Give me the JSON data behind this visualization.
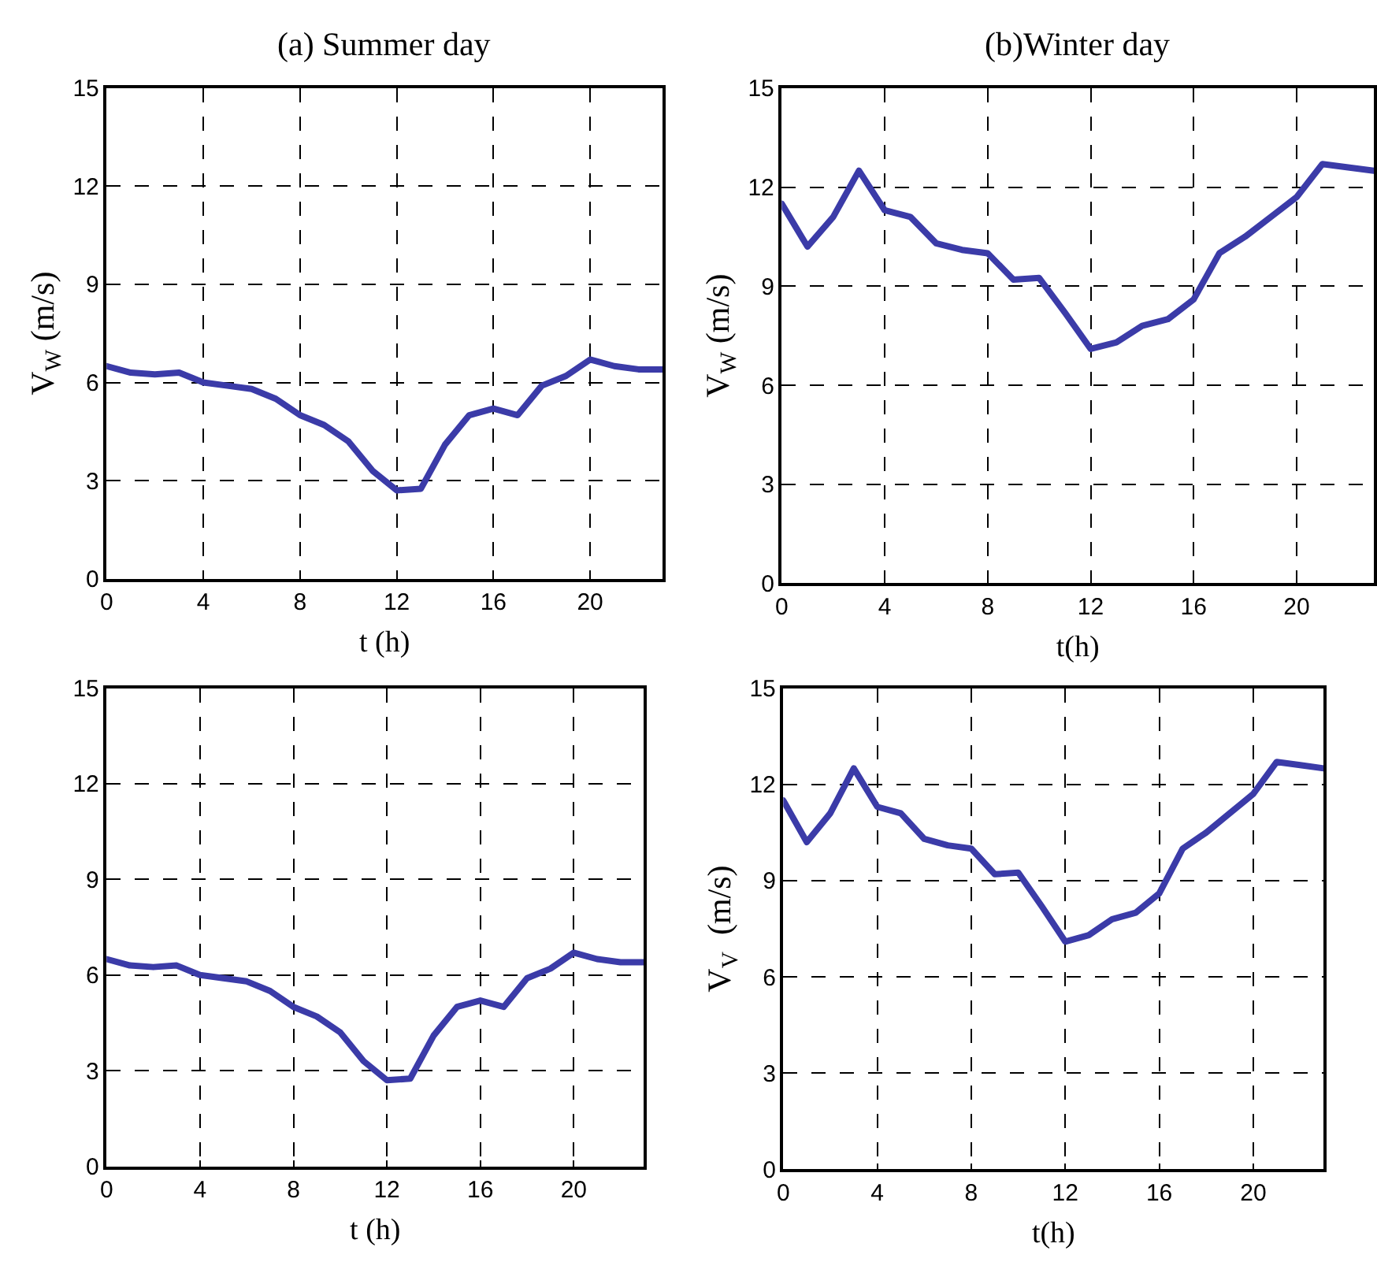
{
  "chart_data": [
    {
      "type": "line",
      "title": "(a) Summer day",
      "xlabel": "t (h)",
      "ylabel": "V$_{W}$ (m/s)",
      "x": [
        0,
        1,
        2,
        3,
        4,
        5,
        6,
        7,
        8,
        9,
        10,
        11,
        12,
        13,
        14,
        15,
        16,
        17,
        18,
        19,
        20,
        21,
        22,
        23
      ],
      "series": [
        {
          "color": "#3b3ba8",
          "values": [
            6.5,
            6.3,
            6.25,
            6.3,
            6.0,
            5.9,
            5.8,
            5.5,
            5.0,
            4.7,
            4.2,
            3.3,
            2.7,
            2.75,
            4.1,
            5.0,
            5.2,
            5.0,
            5.9,
            6.2,
            6.7,
            6.5,
            6.4,
            6.4
          ]
        }
      ],
      "xlim": [
        0,
        23
      ],
      "xticks": [
        0,
        4,
        8,
        12,
        16,
        20
      ],
      "ylim": [
        0,
        15
      ],
      "yticks": [
        0,
        3,
        6,
        9,
        12,
        15
      ],
      "grid": true,
      "line_style": "solid"
    },
    {
      "type": "line",
      "title": "(b)Winter day",
      "xlabel": "t(h)",
      "ylabel": "V$_{W}$ (m/s)",
      "x": [
        0,
        1,
        2,
        3,
        4,
        5,
        6,
        7,
        8,
        9,
        10,
        11,
        12,
        13,
        14,
        15,
        16,
        17,
        18,
        19,
        20,
        21,
        22,
        23
      ],
      "series": [
        {
          "color": "#3b3ba8",
          "values": [
            11.5,
            10.2,
            11.1,
            12.5,
            11.3,
            11.1,
            10.3,
            10.1,
            10.0,
            9.2,
            9.25,
            8.2,
            7.1,
            7.3,
            7.8,
            8.0,
            8.6,
            10.0,
            10.5,
            11.1,
            11.7,
            12.7,
            12.6,
            12.5
          ]
        }
      ],
      "xlim": [
        0,
        23
      ],
      "xticks": [
        0,
        4,
        8,
        12,
        16,
        20
      ],
      "ylim": [
        0,
        15
      ],
      "yticks": [
        0,
        3,
        6,
        9,
        12,
        15
      ],
      "grid": true,
      "line_style": "solid"
    },
    {
      "type": "line",
      "xlabel": "t (h)",
      "x": [
        0,
        1,
        2,
        3,
        4,
        5,
        6,
        7,
        8,
        9,
        10,
        11,
        12,
        13,
        14,
        15,
        16,
        17,
        18,
        19,
        20,
        21,
        22,
        23
      ],
      "series": [
        {
          "color": "#3b3ba8",
          "values": [
            6.5,
            6.3,
            6.25,
            6.3,
            6.0,
            5.9,
            5.8,
            5.5,
            5.0,
            4.7,
            4.2,
            3.3,
            2.7,
            2.75,
            4.1,
            5.0,
            5.2,
            5.0,
            5.9,
            6.2,
            6.7,
            6.5,
            6.4,
            6.4
          ]
        }
      ],
      "xlim": [
        0,
        23
      ],
      "xticks": [
        0,
        4,
        8,
        12,
        16,
        20
      ],
      "ylim": [
        0,
        15
      ],
      "yticks": [
        0,
        3,
        6,
        9,
        12,
        15
      ],
      "grid": true,
      "line_style": "solid"
    },
    {
      "type": "line",
      "xlabel": "t(h)",
      "ylabel": "V$_{V}$  (m/s)",
      "x": [
        0,
        1,
        2,
        3,
        4,
        5,
        6,
        7,
        8,
        9,
        10,
        11,
        12,
        13,
        14,
        15,
        16,
        17,
        18,
        19,
        20,
        21,
        22,
        23
      ],
      "series": [
        {
          "color": "#3b3ba8",
          "values": [
            11.5,
            10.2,
            11.1,
            12.5,
            11.3,
            11.1,
            10.3,
            10.1,
            10.0,
            9.2,
            9.25,
            8.2,
            7.1,
            7.3,
            7.8,
            8.0,
            8.6,
            10.0,
            10.5,
            11.1,
            11.7,
            12.7,
            12.6,
            12.5
          ]
        }
      ],
      "xlim": [
        0,
        23
      ],
      "xticks": [
        0,
        4,
        8,
        12,
        16,
        20
      ],
      "ylim": [
        0,
        15
      ],
      "yticks": [
        0,
        3,
        6,
        9,
        12,
        15
      ],
      "grid": true,
      "line_style": "solid"
    }
  ]
}
